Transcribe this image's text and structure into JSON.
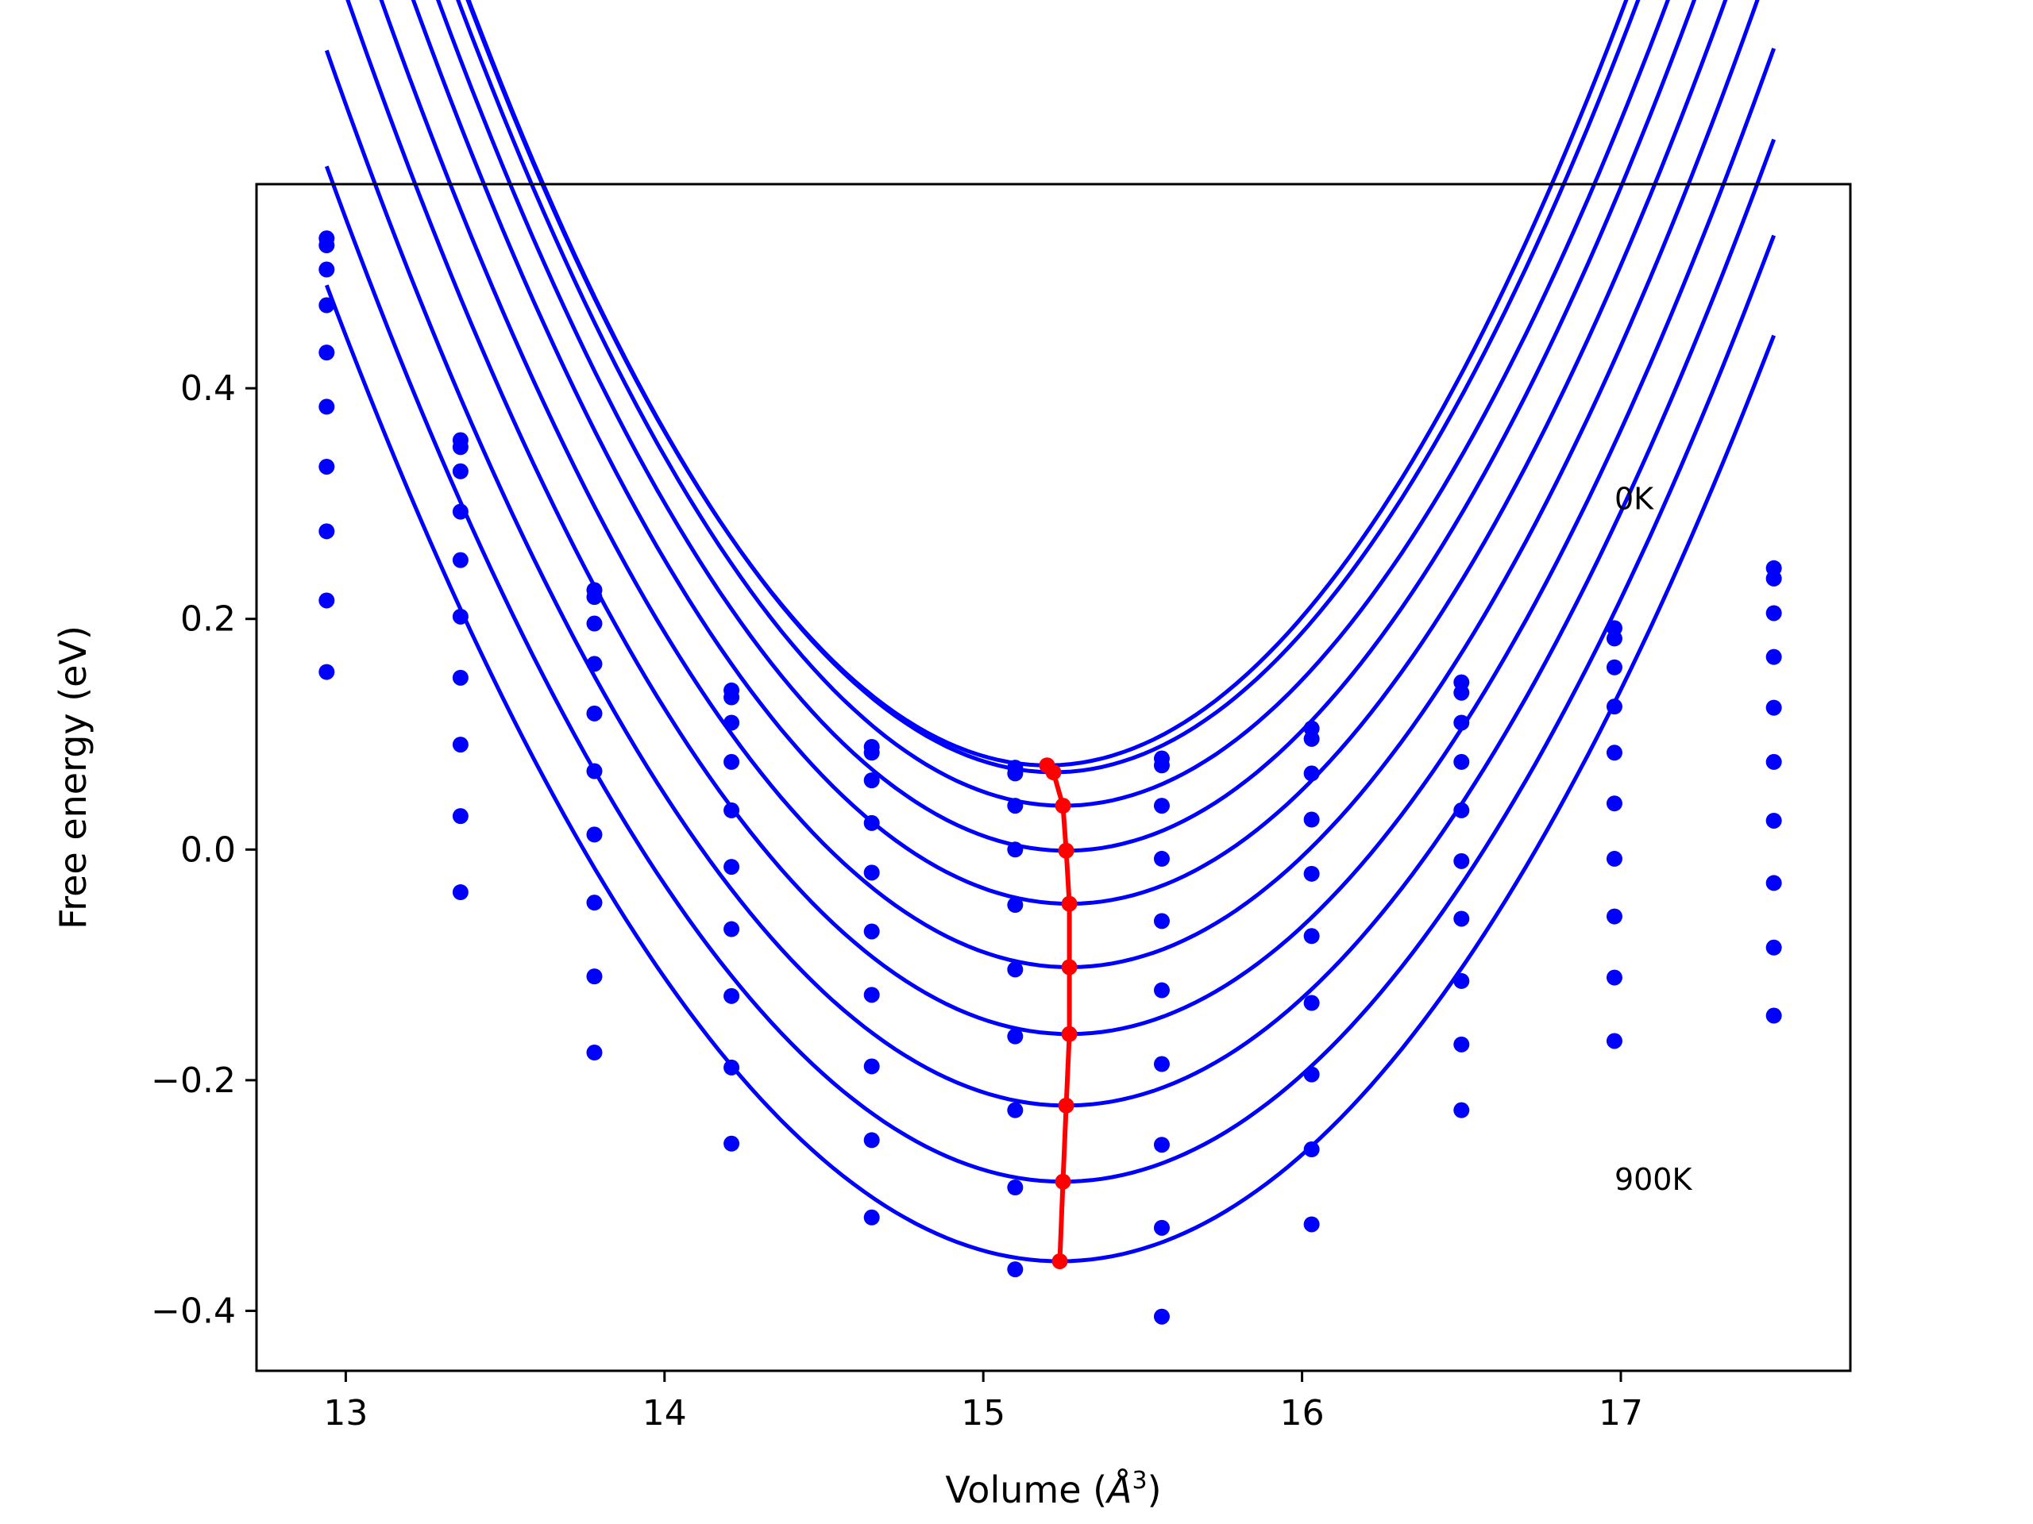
{
  "chart_data": {
    "type": "scatter",
    "title": "",
    "xlabel": "Volume (Å³)",
    "xlabel_parts": {
      "prefix": "Volume (",
      "unit_base": "Å",
      "unit_exp": "3",
      "suffix": ")"
    },
    "ylabel": "Free energy (eV)",
    "xlim": [
      12.72,
      17.72
    ],
    "ylim": [
      -0.452,
      0.577
    ],
    "xticks": [
      13,
      14,
      15,
      16,
      17
    ],
    "xtick_labels": [
      "13",
      "14",
      "15",
      "16",
      "17"
    ],
    "yticks": [
      0.4,
      0.2,
      0.0,
      -0.2,
      -0.4
    ],
    "ytick_labels": [
      "0.4",
      "0.2",
      "0.0",
      "−0.2",
      "−0.4"
    ],
    "grid": false,
    "annotations": [
      {
        "text": "0K",
        "x": 16.98,
        "y": 0.295
      },
      {
        "text": "900K",
        "x": 16.98,
        "y": -0.295
      }
    ],
    "colors": {
      "curves": "#0000ff",
      "minimum_line": "#ff0000",
      "axes": "#000000"
    },
    "x": [
      12.94,
      13.36,
      13.78,
      14.21,
      14.65,
      15.1,
      15.56,
      16.03,
      16.5,
      16.98,
      17.48
    ],
    "series": [
      {
        "values": [
          0.53,
          0.355,
          0.225,
          0.138,
          0.089,
          0.071,
          0.079,
          0.105,
          0.145,
          0.192,
          0.244
        ],
        "fit": {
          "vmin": 15.2,
          "emin": 0.073,
          "a": 0.201
        }
      },
      {
        "values": [
          0.524,
          0.349,
          0.219,
          0.132,
          0.084,
          0.066,
          0.073,
          0.096,
          0.136,
          0.183,
          0.235
        ],
        "fit": {
          "vmin": 15.22,
          "emin": 0.067,
          "a": 0.199
        }
      },
      {
        "values": [
          0.503,
          0.328,
          0.196,
          0.11,
          0.06,
          0.038,
          0.038,
          0.066,
          0.11,
          0.158,
          0.205
        ],
        "fit": {
          "vmin": 15.25,
          "emin": 0.038,
          "a": 0.194
        }
      },
      {
        "values": [
          0.472,
          0.293,
          0.161,
          0.076,
          0.023,
          0.0,
          -0.008,
          0.026,
          0.076,
          0.124,
          0.167
        ],
        "fit": {
          "vmin": 15.26,
          "emin": -0.001,
          "a": 0.19
        }
      },
      {
        "values": [
          0.431,
          0.251,
          0.118,
          0.034,
          -0.02,
          -0.048,
          -0.062,
          -0.021,
          0.034,
          0.084,
          0.123
        ],
        "fit": {
          "vmin": 15.27,
          "emin": -0.047,
          "a": 0.185
        }
      },
      {
        "values": [
          0.384,
          0.202,
          0.068,
          -0.015,
          -0.071,
          -0.104,
          -0.122,
          -0.075,
          -0.01,
          0.04,
          0.076
        ],
        "fit": {
          "vmin": 15.27,
          "emin": -0.102,
          "a": 0.18
        }
      },
      {
        "values": [
          0.332,
          0.149,
          0.013,
          -0.069,
          -0.126,
          -0.162,
          -0.186,
          -0.133,
          -0.06,
          -0.008,
          0.025
        ],
        "fit": {
          "vmin": 15.27,
          "emin": -0.16,
          "a": 0.175
        }
      },
      {
        "values": [
          0.276,
          0.091,
          -0.046,
          -0.127,
          -0.188,
          -0.226,
          -0.256,
          -0.195,
          -0.114,
          -0.058,
          -0.029
        ],
        "fit": {
          "vmin": 15.26,
          "emin": -0.222,
          "a": 0.17
        }
      },
      {
        "values": [
          0.216,
          0.029,
          -0.11,
          -0.189,
          -0.252,
          -0.293,
          -0.328,
          -0.26,
          -0.169,
          -0.111,
          -0.085
        ],
        "fit": {
          "vmin": 15.25,
          "emin": -0.288,
          "a": 0.165
        }
      },
      {
        "values": [
          0.154,
          -0.037,
          -0.176,
          -0.255,
          -0.319,
          -0.364,
          -0.405,
          -0.325,
          -0.226,
          -0.166,
          -0.144
        ],
        "fit": {
          "vmin": 15.24,
          "emin": -0.357,
          "a": 0.16
        }
      }
    ],
    "minimum_locus": {
      "x": [
        15.2,
        15.22,
        15.25,
        15.26,
        15.27,
        15.27,
        15.27,
        15.26,
        15.25,
        15.24
      ],
      "y": [
        0.073,
        0.067,
        0.038,
        -0.001,
        -0.047,
        -0.102,
        -0.16,
        -0.222,
        -0.288,
        -0.357
      ]
    }
  }
}
